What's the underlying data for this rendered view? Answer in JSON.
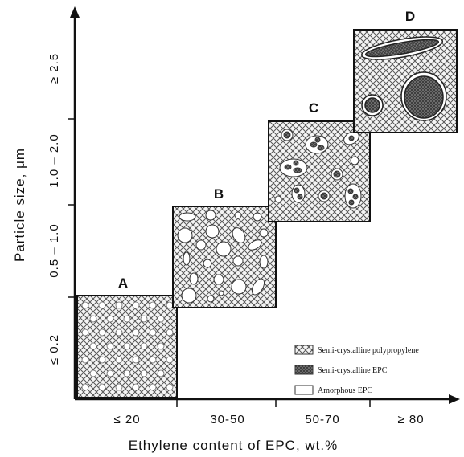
{
  "axes": {
    "y_title": "Particle size, μm",
    "x_title": "Ethylene content of EPC, wt.%",
    "y_labels": [
      "≤ 0.2",
      "0.5 – 1.0",
      "1.0 – 2.0",
      "≥ 2.5"
    ],
    "x_labels": [
      "≤ 20",
      "30-50",
      "50-70",
      "≥ 80"
    ]
  },
  "boxes": [
    {
      "label": "A"
    },
    {
      "label": "B"
    },
    {
      "label": "C"
    },
    {
      "label": "D"
    }
  ],
  "legend": [
    "Semi-crystalline polypropylene",
    "Semi-crystalline EPC",
    "Amorphous EPC"
  ]
}
